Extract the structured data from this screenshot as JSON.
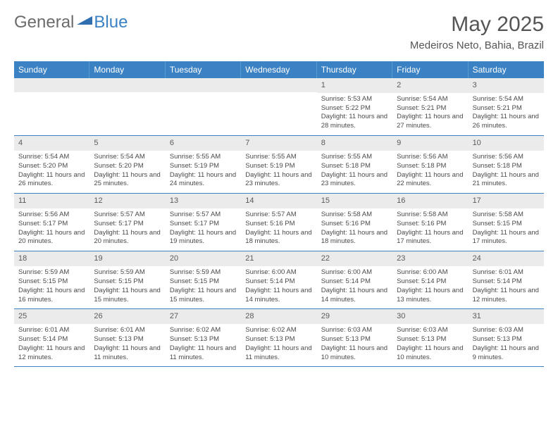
{
  "logo": {
    "word1": "General",
    "word2": "Blue"
  },
  "title": "May 2025",
  "location": "Medeiros Neto, Bahia, Brazil",
  "colors": {
    "header_bg": "#3b82c4",
    "header_text": "#ffffff",
    "daynum_bg": "#ebebeb",
    "row_border": "#3b82c4",
    "body_text": "#4a4a4a",
    "logo_gray": "#6b6b6b",
    "logo_blue": "#3b82c4"
  },
  "weekdays": [
    "Sunday",
    "Monday",
    "Tuesday",
    "Wednesday",
    "Thursday",
    "Friday",
    "Saturday"
  ],
  "weeks": [
    [
      {
        "empty": true
      },
      {
        "empty": true
      },
      {
        "empty": true
      },
      {
        "empty": true
      },
      {
        "day": "1",
        "sunrise": "Sunrise: 5:53 AM",
        "sunset": "Sunset: 5:22 PM",
        "daylight": "Daylight: 11 hours and 28 minutes."
      },
      {
        "day": "2",
        "sunrise": "Sunrise: 5:54 AM",
        "sunset": "Sunset: 5:21 PM",
        "daylight": "Daylight: 11 hours and 27 minutes."
      },
      {
        "day": "3",
        "sunrise": "Sunrise: 5:54 AM",
        "sunset": "Sunset: 5:21 PM",
        "daylight": "Daylight: 11 hours and 26 minutes."
      }
    ],
    [
      {
        "day": "4",
        "sunrise": "Sunrise: 5:54 AM",
        "sunset": "Sunset: 5:20 PM",
        "daylight": "Daylight: 11 hours and 26 minutes."
      },
      {
        "day": "5",
        "sunrise": "Sunrise: 5:54 AM",
        "sunset": "Sunset: 5:20 PM",
        "daylight": "Daylight: 11 hours and 25 minutes."
      },
      {
        "day": "6",
        "sunrise": "Sunrise: 5:55 AM",
        "sunset": "Sunset: 5:19 PM",
        "daylight": "Daylight: 11 hours and 24 minutes."
      },
      {
        "day": "7",
        "sunrise": "Sunrise: 5:55 AM",
        "sunset": "Sunset: 5:19 PM",
        "daylight": "Daylight: 11 hours and 23 minutes."
      },
      {
        "day": "8",
        "sunrise": "Sunrise: 5:55 AM",
        "sunset": "Sunset: 5:18 PM",
        "daylight": "Daylight: 11 hours and 23 minutes."
      },
      {
        "day": "9",
        "sunrise": "Sunrise: 5:56 AM",
        "sunset": "Sunset: 5:18 PM",
        "daylight": "Daylight: 11 hours and 22 minutes."
      },
      {
        "day": "10",
        "sunrise": "Sunrise: 5:56 AM",
        "sunset": "Sunset: 5:18 PM",
        "daylight": "Daylight: 11 hours and 21 minutes."
      }
    ],
    [
      {
        "day": "11",
        "sunrise": "Sunrise: 5:56 AM",
        "sunset": "Sunset: 5:17 PM",
        "daylight": "Daylight: 11 hours and 20 minutes."
      },
      {
        "day": "12",
        "sunrise": "Sunrise: 5:57 AM",
        "sunset": "Sunset: 5:17 PM",
        "daylight": "Daylight: 11 hours and 20 minutes."
      },
      {
        "day": "13",
        "sunrise": "Sunrise: 5:57 AM",
        "sunset": "Sunset: 5:17 PM",
        "daylight": "Daylight: 11 hours and 19 minutes."
      },
      {
        "day": "14",
        "sunrise": "Sunrise: 5:57 AM",
        "sunset": "Sunset: 5:16 PM",
        "daylight": "Daylight: 11 hours and 18 minutes."
      },
      {
        "day": "15",
        "sunrise": "Sunrise: 5:58 AM",
        "sunset": "Sunset: 5:16 PM",
        "daylight": "Daylight: 11 hours and 18 minutes."
      },
      {
        "day": "16",
        "sunrise": "Sunrise: 5:58 AM",
        "sunset": "Sunset: 5:16 PM",
        "daylight": "Daylight: 11 hours and 17 minutes."
      },
      {
        "day": "17",
        "sunrise": "Sunrise: 5:58 AM",
        "sunset": "Sunset: 5:15 PM",
        "daylight": "Daylight: 11 hours and 17 minutes."
      }
    ],
    [
      {
        "day": "18",
        "sunrise": "Sunrise: 5:59 AM",
        "sunset": "Sunset: 5:15 PM",
        "daylight": "Daylight: 11 hours and 16 minutes."
      },
      {
        "day": "19",
        "sunrise": "Sunrise: 5:59 AM",
        "sunset": "Sunset: 5:15 PM",
        "daylight": "Daylight: 11 hours and 15 minutes."
      },
      {
        "day": "20",
        "sunrise": "Sunrise: 5:59 AM",
        "sunset": "Sunset: 5:15 PM",
        "daylight": "Daylight: 11 hours and 15 minutes."
      },
      {
        "day": "21",
        "sunrise": "Sunrise: 6:00 AM",
        "sunset": "Sunset: 5:14 PM",
        "daylight": "Daylight: 11 hours and 14 minutes."
      },
      {
        "day": "22",
        "sunrise": "Sunrise: 6:00 AM",
        "sunset": "Sunset: 5:14 PM",
        "daylight": "Daylight: 11 hours and 14 minutes."
      },
      {
        "day": "23",
        "sunrise": "Sunrise: 6:00 AM",
        "sunset": "Sunset: 5:14 PM",
        "daylight": "Daylight: 11 hours and 13 minutes."
      },
      {
        "day": "24",
        "sunrise": "Sunrise: 6:01 AM",
        "sunset": "Sunset: 5:14 PM",
        "daylight": "Daylight: 11 hours and 12 minutes."
      }
    ],
    [
      {
        "day": "25",
        "sunrise": "Sunrise: 6:01 AM",
        "sunset": "Sunset: 5:14 PM",
        "daylight": "Daylight: 11 hours and 12 minutes."
      },
      {
        "day": "26",
        "sunrise": "Sunrise: 6:01 AM",
        "sunset": "Sunset: 5:13 PM",
        "daylight": "Daylight: 11 hours and 11 minutes."
      },
      {
        "day": "27",
        "sunrise": "Sunrise: 6:02 AM",
        "sunset": "Sunset: 5:13 PM",
        "daylight": "Daylight: 11 hours and 11 minutes."
      },
      {
        "day": "28",
        "sunrise": "Sunrise: 6:02 AM",
        "sunset": "Sunset: 5:13 PM",
        "daylight": "Daylight: 11 hours and 11 minutes."
      },
      {
        "day": "29",
        "sunrise": "Sunrise: 6:03 AM",
        "sunset": "Sunset: 5:13 PM",
        "daylight": "Daylight: 11 hours and 10 minutes."
      },
      {
        "day": "30",
        "sunrise": "Sunrise: 6:03 AM",
        "sunset": "Sunset: 5:13 PM",
        "daylight": "Daylight: 11 hours and 10 minutes."
      },
      {
        "day": "31",
        "sunrise": "Sunrise: 6:03 AM",
        "sunset": "Sunset: 5:13 PM",
        "daylight": "Daylight: 11 hours and 9 minutes."
      }
    ]
  ]
}
